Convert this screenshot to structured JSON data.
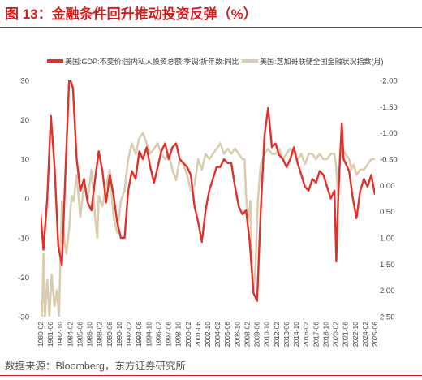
{
  "header": {
    "title": "图 13：金融条件回升推动投资反弹（%）"
  },
  "footer": {
    "source": "数据来源：Bloomberg，东方证券研究所"
  },
  "colors": {
    "accent": "#d21e1e",
    "gdp_series": "#e0302a",
    "nfci_series": "#d9ccb0"
  },
  "chart_data": {
    "type": "line",
    "title": "",
    "left_axis": {
      "ylim": [
        -30,
        30
      ],
      "ticks": [
        30,
        20,
        10,
        0,
        -10,
        -20,
        -30
      ]
    },
    "right_axis": {
      "ylim": [
        2.5,
        -2.0
      ],
      "inverted": true,
      "ticks": [
        "-2.00",
        "-1.50",
        "-1.00",
        "-0.50",
        "0.00",
        "0.50",
        "1.00",
        "1.50",
        "2.00",
        "2.50"
      ]
    },
    "x_ticks": [
      "1980-02",
      "1981-06",
      "1982-10",
      "1984-02",
      "1985-06",
      "1986-10",
      "1988-02",
      "1989-06",
      "1990-10",
      "1992-02",
      "1993-06",
      "1994-10",
      "1996-02",
      "1997-06",
      "1998-10",
      "2000-02",
      "2001-06",
      "2002-10",
      "2004-02",
      "2005-06",
      "2006-10",
      "2008-02",
      "2009-06",
      "2010-10",
      "2012-02",
      "2013-06",
      "2014-10",
      "2016-02",
      "2017-06",
      "2018-10",
      "2020-02",
      "2021-06",
      "2022-10",
      "2024-02",
      "2025-06"
    ],
    "grid": false,
    "legend_position": "top",
    "series": [
      {
        "name": "美国:GDP:不变价:国内私人投资总额:季调:折年数:同比",
        "axis": "left",
        "color": "#e0302a",
        "x": [
          1980.1,
          1980.5,
          1981.0,
          1981.5,
          1982.0,
          1982.5,
          1983.0,
          1983.5,
          1984.0,
          1984.5,
          1985.0,
          1985.5,
          1986.0,
          1986.5,
          1987.0,
          1987.5,
          1988.0,
          1988.5,
          1989.0,
          1989.5,
          1990.0,
          1990.5,
          1991.0,
          1991.5,
          1992.0,
          1992.5,
          1993.0,
          1993.5,
          1994.0,
          1994.5,
          1995.0,
          1995.5,
          1996.0,
          1996.5,
          1997.0,
          1997.5,
          1998.0,
          1998.5,
          1999.0,
          1999.5,
          2000.0,
          2000.5,
          2001.0,
          2001.5,
          2002.0,
          2002.5,
          2003.0,
          2003.5,
          2004.0,
          2004.5,
          2005.0,
          2005.5,
          2006.0,
          2006.5,
          2007.0,
          2007.5,
          2008.0,
          2008.5,
          2009.0,
          2009.5,
          2010.0,
          2010.5,
          2011.0,
          2011.5,
          2012.0,
          2012.5,
          2013.0,
          2013.5,
          2014.0,
          2014.5,
          2015.0,
          2015.5,
          2016.0,
          2016.5,
          2017.0,
          2017.5,
          2018.0,
          2018.5,
          2019.0,
          2019.5,
          2020.0,
          2020.25,
          2020.5,
          2020.75,
          2021.0,
          2021.25,
          2021.5,
          2022.0,
          2022.5,
          2023.0,
          2023.5,
          2024.0,
          2024.5,
          2025.0,
          2025.5
        ],
        "values": [
          -4,
          -13,
          0,
          21,
          8,
          -12,
          -17,
          8,
          31,
          28,
          10,
          2,
          5,
          -1,
          -3,
          5,
          12,
          7,
          -1,
          6,
          1,
          -6,
          -10,
          -10,
          2,
          7,
          5,
          12,
          10,
          13,
          8,
          4,
          8,
          12,
          14,
          10,
          13,
          14,
          10,
          9,
          8,
          6,
          -2,
          -6,
          -11,
          -3,
          2,
          5,
          8,
          8,
          10,
          9,
          9,
          3,
          -2,
          -4,
          -3,
          -11,
          -24,
          -26,
          -3,
          16,
          23,
          13,
          14,
          11,
          10,
          8,
          10,
          13,
          9,
          6,
          3,
          2,
          5,
          4,
          7,
          6,
          3,
          0,
          2,
          -16,
          -1,
          10,
          19,
          10,
          9,
          7,
          0,
          -5,
          2,
          5,
          3,
          6,
          1
        ]
      },
      {
        "name": "美国:芝加哥联储全国金融状况指数(月)",
        "axis": "right",
        "color": "#d9ccb0",
        "x": [
          1980.1,
          1980.3,
          1980.5,
          1980.7,
          1981.0,
          1981.3,
          1981.6,
          1982.0,
          1982.3,
          1982.6,
          1983.0,
          1983.3,
          1983.6,
          1984.0,
          1984.3,
          1984.6,
          1985.0,
          1985.5,
          1986.0,
          1986.5,
          1987.0,
          1987.5,
          1987.8,
          1988.0,
          1988.5,
          1989.0,
          1989.5,
          1990.0,
          1990.5,
          1991.0,
          1991.5,
          1992.0,
          1992.5,
          1993.0,
          1993.5,
          1994.0,
          1994.5,
          1995.0,
          1995.5,
          1996.0,
          1996.5,
          1997.0,
          1997.5,
          1998.0,
          1998.5,
          1999.0,
          1999.5,
          2000.0,
          2000.5,
          2001.0,
          2001.5,
          2002.0,
          2002.5,
          2003.0,
          2003.5,
          2004.0,
          2004.5,
          2005.0,
          2005.5,
          2006.0,
          2006.5,
          2007.0,
          2007.5,
          2007.8,
          2008.0,
          2008.3,
          2008.6,
          2008.8,
          2009.0,
          2009.3,
          2009.6,
          2010.0,
          2010.5,
          2011.0,
          2011.5,
          2012.0,
          2012.5,
          2013.0,
          2013.5,
          2014.0,
          2014.5,
          2015.0,
          2015.5,
          2016.0,
          2016.5,
          2017.0,
          2017.5,
          2018.0,
          2018.5,
          2019.0,
          2019.5,
          2020.0,
          2020.2,
          2020.5,
          2020.8,
          2021.0,
          2021.5,
          2022.0,
          2022.3,
          2022.6,
          2023.0,
          2023.5,
          2024.0,
          2024.5,
          2025.0,
          2025.5
        ],
        "values": [
          2.2,
          2.5,
          1.3,
          2.5,
          1.8,
          2.5,
          1.7,
          2.3,
          2.0,
          2.5,
          0.3,
          1.0,
          1.3,
          0.8,
          0.2,
          0.3,
          -0.2,
          0.6,
          0.0,
          0.3,
          -0.3,
          0.6,
          1.0,
          0.2,
          0.4,
          0.0,
          -0.3,
          0.6,
          0.9,
          0.3,
          0.1,
          -0.5,
          -0.8,
          -0.6,
          -0.9,
          -1.0,
          -0.8,
          -0.6,
          -0.7,
          -0.8,
          -0.6,
          -0.5,
          -0.6,
          -0.3,
          -0.1,
          -0.5,
          -0.4,
          -0.2,
          0.1,
          0.0,
          -0.5,
          -0.3,
          -0.6,
          -0.5,
          -0.6,
          -0.7,
          -0.8,
          -0.6,
          -0.7,
          -0.6,
          -0.7,
          -0.6,
          -0.5,
          -0.5,
          0.2,
          0.7,
          0.3,
          1.5,
          2.0,
          1.5,
          0.3,
          -0.4,
          -0.6,
          -0.7,
          -0.6,
          -0.6,
          -0.7,
          -0.5,
          -0.6,
          -0.7,
          -0.6,
          -0.5,
          -0.6,
          -0.4,
          -0.6,
          -0.6,
          -0.5,
          -0.6,
          -0.5,
          -0.5,
          -0.6,
          -0.6,
          -0.4,
          0.2,
          -0.6,
          -0.7,
          -0.6,
          -0.5,
          -0.3,
          -0.4,
          -0.2,
          -0.3,
          -0.3,
          -0.4,
          -0.5,
          -0.5
        ]
      }
    ]
  }
}
